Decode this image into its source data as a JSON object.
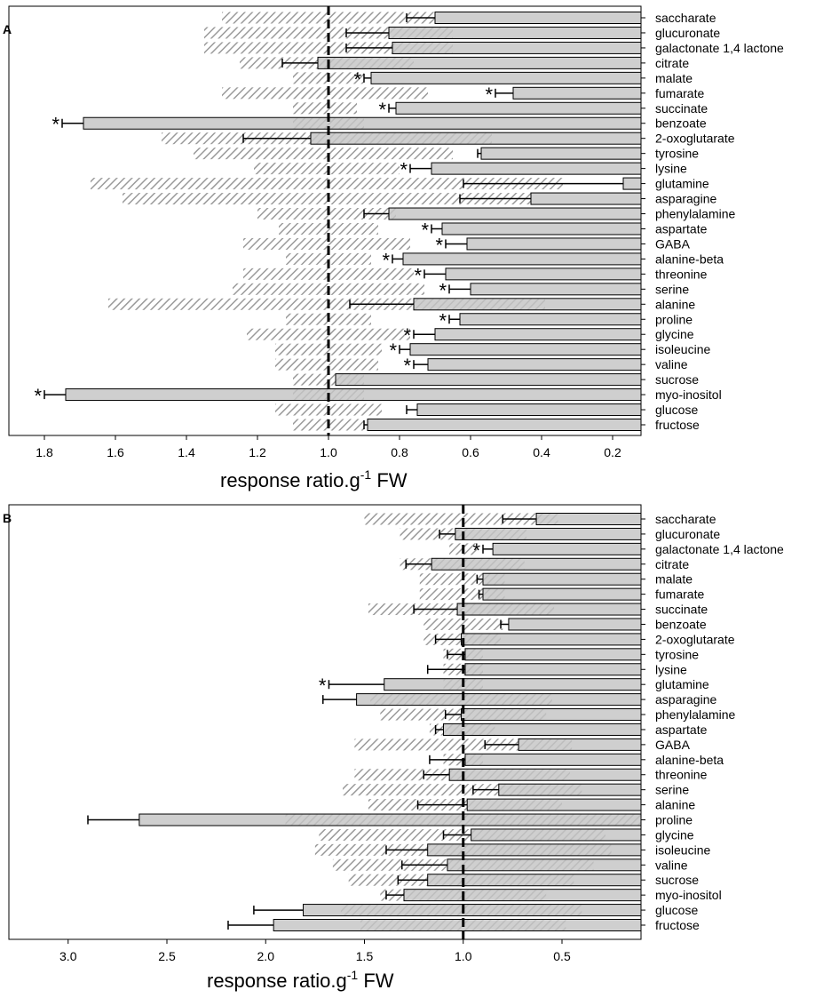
{
  "chart_data": [
    {
      "panel": "A",
      "type": "bar",
      "orientation": "horizontal",
      "x_reversed": true,
      "xlabel": "response ratio.g",
      "xlabel_sup": "-1",
      "xlabel_suffix": " FW",
      "xlim": [
        1.9,
        0.12
      ],
      "reference_line": 1.0,
      "xticks": [
        "1.8",
        "1.6",
        "1.4",
        "1.2",
        "1.0",
        "0.8",
        "0.6",
        "0.4",
        "0.2"
      ],
      "xtick_values": [
        1.8,
        1.6,
        1.4,
        1.2,
        1.0,
        0.8,
        0.6,
        0.4,
        0.2
      ],
      "categories": [
        "saccharate",
        "glucuronate",
        "galactonate 1,4 lactone",
        "citrate",
        "malate",
        "fumarate",
        "succinate",
        "benzoate",
        "2-oxoglutarate",
        "tyrosine",
        "lysine",
        "glutamine",
        "asparagine",
        "phenylalamine",
        "aspartate",
        "GABA",
        "alanine-beta",
        "threonine",
        "serine",
        "alanine",
        "proline",
        "glycine",
        "isoleucine",
        "valine",
        "sucrose",
        "myo-inositol",
        "glucose",
        "fructose"
      ],
      "series": [
        {
          "name": "solid",
          "values": [
            0.7,
            0.83,
            0.82,
            1.03,
            0.88,
            0.48,
            0.81,
            1.69,
            1.05,
            0.57,
            0.71,
            0.17,
            0.43,
            0.83,
            0.68,
            0.61,
            0.79,
            0.67,
            0.6,
            0.76,
            0.63,
            0.7,
            0.77,
            0.72,
            0.98,
            1.74,
            0.75,
            0.89
          ],
          "errors": [
            0.08,
            0.12,
            0.13,
            0.1,
            0.02,
            0.05,
            0.02,
            0.06,
            0.19,
            0.01,
            0.06,
            0.45,
            0.2,
            0.07,
            0.03,
            0.06,
            0.03,
            0.06,
            0.06,
            0.18,
            0.03,
            0.06,
            0.03,
            0.04,
            0.0,
            0.06,
            0.03,
            0.01
          ]
        },
        {
          "name": "hatched",
          "start": [
            1.3,
            1.35,
            1.35,
            1.25,
            1.1,
            1.3,
            1.1,
            1.1,
            1.47,
            1.38,
            1.21,
            1.67,
            1.58,
            1.2,
            1.14,
            1.24,
            1.12,
            1.24,
            1.27,
            1.62,
            1.12,
            1.23,
            1.15,
            1.15,
            1.1,
            1.1,
            1.15,
            1.1
          ],
          "end": [
            0.7,
            0.65,
            0.65,
            0.76,
            0.9,
            0.72,
            0.92,
            0.9,
            0.54,
            0.65,
            0.8,
            0.34,
            0.43,
            0.81,
            0.86,
            0.77,
            0.88,
            0.76,
            0.73,
            0.39,
            0.88,
            0.77,
            0.85,
            0.86,
            0.9,
            0.9,
            0.85,
            0.9
          ]
        }
      ],
      "significant": [
        "malate",
        "fumarate",
        "succinate",
        "benzoate",
        "lysine",
        "aspartate",
        "GABA",
        "alanine-beta",
        "threonine",
        "serine",
        "proline",
        "glycine",
        "isoleucine",
        "valine",
        "myo-inositol"
      ],
      "star_symbol": "*"
    },
    {
      "panel": "B",
      "type": "bar",
      "orientation": "horizontal",
      "x_reversed": true,
      "xlabel": "response ratio.g",
      "xlabel_sup": "-1",
      "xlabel_suffix": " FW",
      "xlim": [
        3.3,
        0.1
      ],
      "reference_line": 1.0,
      "xticks": [
        "3.0",
        "2.5",
        "2.0",
        "1.5",
        "1.0",
        "0.5"
      ],
      "xtick_values": [
        3.0,
        2.5,
        2.0,
        1.5,
        1.0,
        0.5
      ],
      "categories": [
        "saccharate",
        "glucuronate",
        "galactonate 1,4 lactone",
        "citrate",
        "malate",
        "fumarate",
        "succinate",
        "benzoate",
        "2-oxoglutarate",
        "tyrosine",
        "lysine",
        "glutamine",
        "asparagine",
        "phenylalamine",
        "aspartate",
        "GABA",
        "alanine-beta",
        "threonine",
        "serine",
        "alanine",
        "proline",
        "glycine",
        "isoleucine",
        "valine",
        "sucrose",
        "myo-inositol",
        "glucose",
        "fructose"
      ],
      "series": [
        {
          "name": "solid",
          "values": [
            0.63,
            1.04,
            0.85,
            1.16,
            0.9,
            0.9,
            1.03,
            0.77,
            1.01,
            0.99,
            0.99,
            1.4,
            1.54,
            1.01,
            1.1,
            0.72,
            0.99,
            1.07,
            0.82,
            0.98,
            2.64,
            0.96,
            1.18,
            1.08,
            1.18,
            1.3,
            1.81,
            1.96
          ],
          "errors": [
            0.17,
            0.08,
            0.05,
            0.13,
            0.03,
            0.02,
            0.22,
            0.04,
            0.13,
            0.09,
            0.19,
            0.28,
            0.17,
            0.08,
            0.04,
            0.17,
            0.18,
            0.13,
            0.13,
            0.25,
            0.26,
            0.14,
            0.21,
            0.23,
            0.15,
            0.09,
            0.25,
            0.23
          ]
        },
        {
          "name": "hatched",
          "start": [
            1.5,
            1.32,
            1.07,
            1.32,
            1.22,
            1.22,
            1.48,
            1.2,
            1.2,
            1.1,
            1.1,
            1.1,
            1.47,
            1.42,
            1.17,
            1.55,
            1.1,
            1.55,
            1.61,
            1.48,
            1.9,
            1.73,
            1.75,
            1.66,
            1.58,
            1.42,
            1.62,
            1.52
          ],
          "end": [
            0.52,
            0.68,
            0.93,
            0.69,
            0.79,
            0.79,
            0.54,
            0.8,
            0.81,
            0.9,
            0.9,
            0.9,
            0.55,
            0.58,
            0.84,
            0.45,
            0.9,
            0.46,
            0.4,
            0.5,
            0.1,
            0.28,
            0.25,
            0.34,
            0.44,
            0.58,
            0.4,
            0.48
          ]
        }
      ],
      "significant": [
        "galactonate 1,4 lactone",
        "glutamine"
      ],
      "star_symbol": "*"
    }
  ]
}
